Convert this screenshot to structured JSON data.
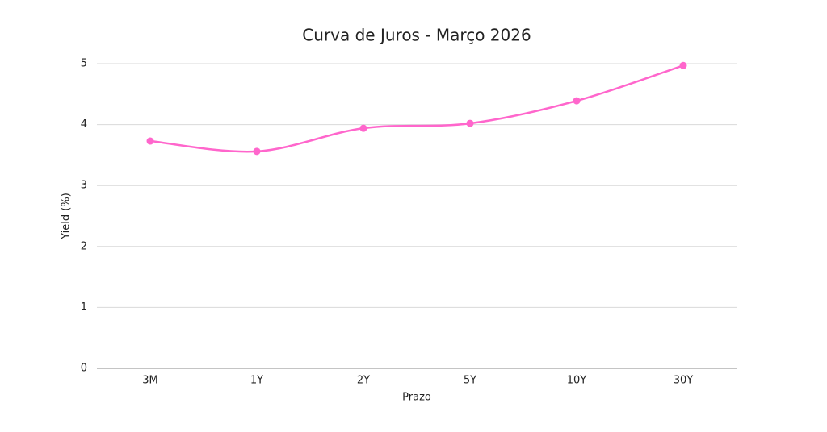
{
  "chart_data": {
    "type": "line",
    "title": "Curva de Juros - Março 2026",
    "xlabel": "Prazo",
    "ylabel": "Yield (%)",
    "categories": [
      "3M",
      "1Y",
      "2Y",
      "5Y",
      "10Y",
      "30Y"
    ],
    "values": [
      3.73,
      3.56,
      3.94,
      4.02,
      4.39,
      4.97
    ],
    "color": "#ff66cc",
    "ylim": [
      0,
      5
    ],
    "yticks": [
      0,
      1,
      2,
      3,
      4,
      5
    ],
    "grid": true
  }
}
